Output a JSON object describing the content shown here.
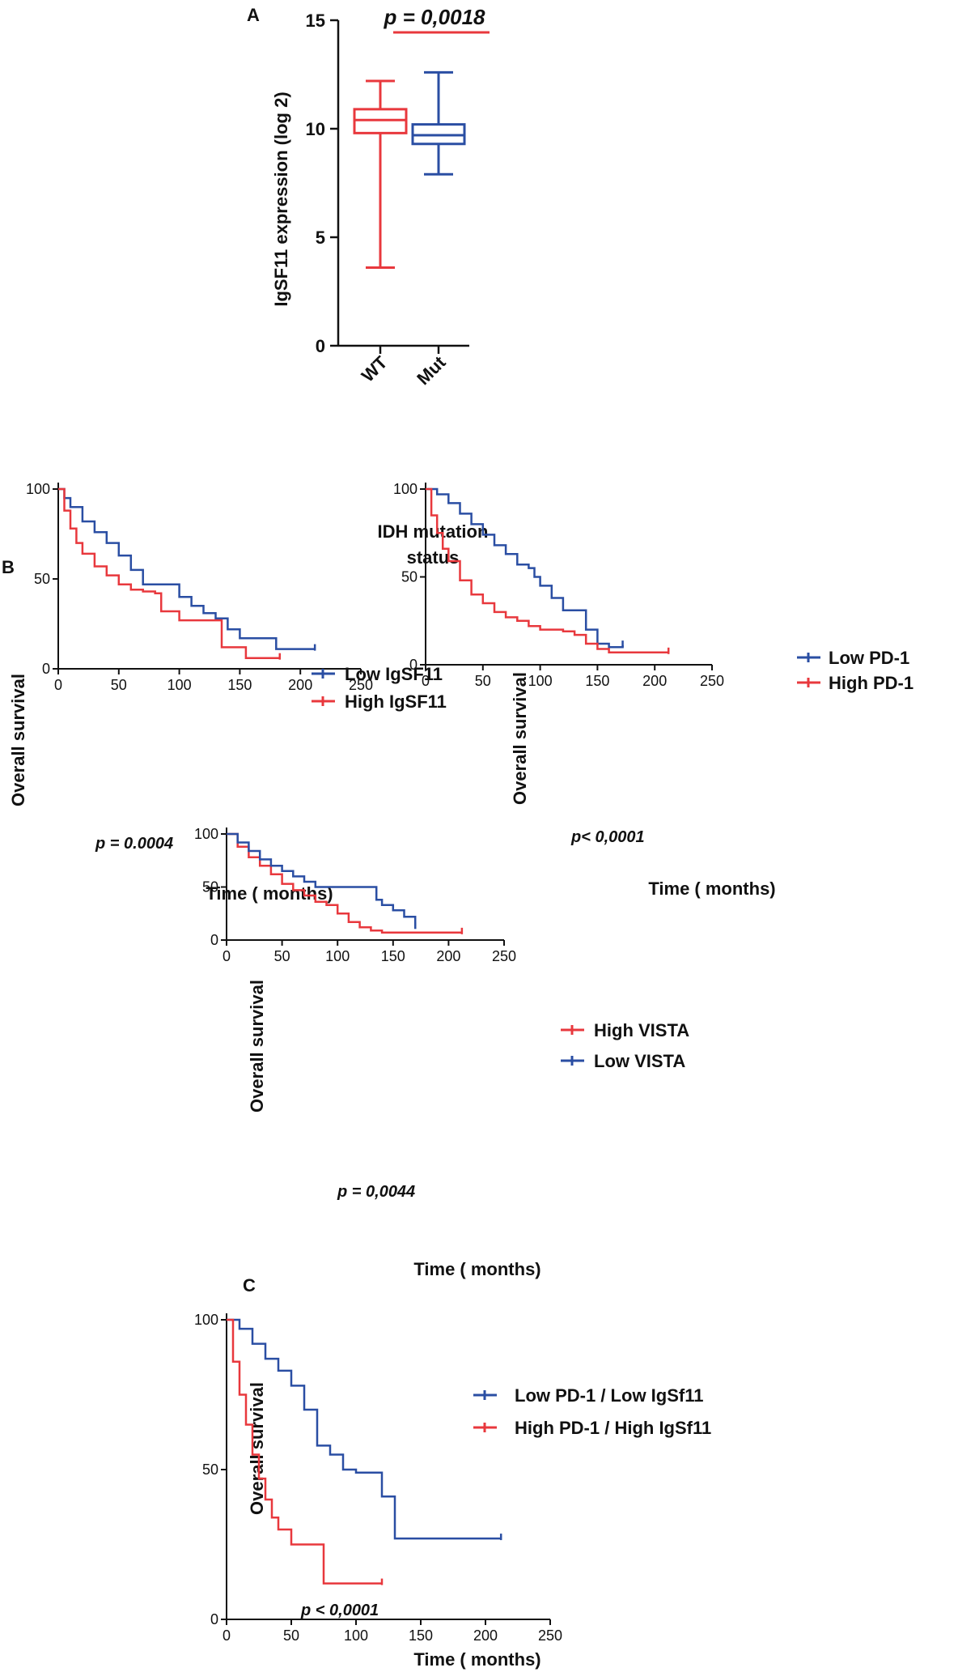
{
  "chart_data": [
    {
      "id": "A",
      "type": "box",
      "panel_label": "A",
      "title": "",
      "xlabel": "IDH mutation status",
      "xlabel_lines": [
        "IDH mutation",
        "status"
      ],
      "ylabel": "IgSF11 expression (log 2)",
      "ylim": [
        0,
        15
      ],
      "yticks": [
        "0",
        "5",
        "10",
        "15"
      ],
      "annotation": "p = 0,0018",
      "categories": [
        "WT",
        "Mut"
      ],
      "boxes": [
        {
          "name": "WT",
          "color": "#e8383d",
          "min": 3.6,
          "q1": 9.8,
          "median": 10.4,
          "q3": 10.9,
          "max": 12.2
        },
        {
          "name": "Mut",
          "color": "#2a4ea3",
          "min": 7.9,
          "q1": 9.3,
          "median": 9.7,
          "q3": 10.2,
          "max": 12.6
        }
      ]
    },
    {
      "id": "B1",
      "type": "line",
      "panel_label": "B",
      "xlabel": "Time ( months)",
      "ylabel": "Overall survival",
      "xlim": [
        0,
        250
      ],
      "ylim": [
        0,
        100
      ],
      "xticks": [
        "0",
        "50",
        "100",
        "150",
        "200",
        "250"
      ],
      "yticks": [
        "0",
        "50",
        "100"
      ],
      "annotation": "p = 0.0004",
      "series": [
        {
          "name": "Low IgSF11",
          "color": "#2a4ea3",
          "x": [
            0,
            5,
            10,
            20,
            30,
            40,
            50,
            60,
            70,
            80,
            90,
            100,
            110,
            120,
            130,
            140,
            150,
            160,
            170,
            180,
            190,
            200,
            212
          ],
          "y": [
            100,
            95,
            90,
            82,
            76,
            70,
            63,
            55,
            47,
            47,
            47,
            40,
            35,
            31,
            28,
            22,
            17,
            17,
            17,
            11,
            11,
            11,
            11
          ]
        },
        {
          "name": "High IgSF11",
          "color": "#e8383d",
          "x": [
            0,
            5,
            10,
            15,
            20,
            30,
            40,
            50,
            60,
            70,
            80,
            85,
            100,
            110,
            120,
            130,
            135,
            150,
            155,
            165,
            183
          ],
          "y": [
            100,
            88,
            78,
            70,
            64,
            57,
            52,
            47,
            44,
            43,
            42,
            32,
            27,
            27,
            27,
            27,
            12,
            12,
            6,
            6,
            6
          ]
        }
      ]
    },
    {
      "id": "B2",
      "type": "line",
      "xlabel": "Time ( months)",
      "ylabel": "Overall survival",
      "xlim": [
        0,
        250
      ],
      "ylim": [
        0,
        100
      ],
      "xticks": [
        "0",
        "50",
        "100",
        "150",
        "200",
        "250"
      ],
      "yticks": [
        "0",
        "50",
        "100"
      ],
      "annotation": "p< 0,0001",
      "series": [
        {
          "name": "Low PD-1",
          "color": "#2a4ea3",
          "x": [
            0,
            10,
            20,
            30,
            40,
            50,
            60,
            70,
            80,
            85,
            90,
            95,
            100,
            110,
            120,
            130,
            140,
            150,
            160,
            172
          ],
          "y": [
            100,
            97,
            92,
            86,
            80,
            74,
            68,
            63,
            57,
            57,
            55,
            50,
            45,
            38,
            31,
            31,
            20,
            12,
            10,
            11
          ]
        },
        {
          "name": "High PD-1",
          "color": "#e8383d",
          "x": [
            0,
            5,
            10,
            15,
            20,
            30,
            40,
            50,
            60,
            70,
            80,
            90,
            100,
            120,
            130,
            140,
            150,
            160,
            175,
            212
          ],
          "y": [
            100,
            85,
            75,
            66,
            59,
            48,
            40,
            35,
            30,
            27,
            25,
            22,
            20,
            19,
            17,
            12,
            9,
            7,
            7,
            7
          ]
        }
      ]
    },
    {
      "id": "B3",
      "type": "line",
      "xlabel": "Time ( months)",
      "ylabel": "Overall survival",
      "xlim": [
        0,
        250
      ],
      "ylim": [
        0,
        100
      ],
      "xticks": [
        "0",
        "50",
        "100",
        "150",
        "200",
        "250"
      ],
      "yticks": [
        "0",
        "50",
        "100"
      ],
      "annotation": "p = 0,0044",
      "series": [
        {
          "name": "High VISTA",
          "color": "#e8383d",
          "x": [
            0,
            10,
            20,
            30,
            40,
            50,
            60,
            70,
            80,
            90,
            100,
            110,
            120,
            130,
            140,
            150,
            160,
            180,
            212
          ],
          "y": [
            100,
            88,
            78,
            70,
            62,
            53,
            47,
            42,
            36,
            33,
            25,
            17,
            12,
            9,
            7,
            7,
            7,
            7,
            7
          ]
        },
        {
          "name": "Low VISTA",
          "color": "#2a4ea3",
          "x": [
            0,
            10,
            20,
            30,
            40,
            50,
            60,
            70,
            80,
            90,
            100,
            110,
            120,
            130,
            135,
            140,
            150,
            160,
            170
          ],
          "y": [
            100,
            92,
            84,
            76,
            70,
            65,
            60,
            55,
            50,
            50,
            50,
            50,
            50,
            50,
            38,
            33,
            28,
            22,
            12
          ]
        }
      ]
    },
    {
      "id": "C",
      "type": "line",
      "panel_label": "C",
      "xlabel": "Time ( months)",
      "ylabel": "Overall survival",
      "xlim": [
        0,
        250
      ],
      "ylim": [
        0,
        100
      ],
      "xticks": [
        "0",
        "50",
        "100",
        "150",
        "200",
        "250"
      ],
      "yticks": [
        "0",
        "50",
        "100"
      ],
      "annotation": "p < 0,0001",
      "series": [
        {
          "name": "Low PD-1 / Low IgSf11",
          "color": "#2a4ea3",
          "x": [
            0,
            10,
            20,
            30,
            40,
            50,
            60,
            70,
            80,
            90,
            100,
            110,
            120,
            130,
            140,
            160,
            180,
            212
          ],
          "y": [
            100,
            97,
            92,
            87,
            83,
            78,
            70,
            58,
            55,
            50,
            49,
            49,
            41,
            27,
            27,
            27,
            27,
            27
          ]
        },
        {
          "name": "High PD-1 / High IgSf11",
          "color": "#e8383d",
          "x": [
            0,
            5,
            10,
            15,
            20,
            25,
            30,
            35,
            40,
            50,
            60,
            70,
            75,
            80,
            100,
            120
          ],
          "y": [
            100,
            86,
            75,
            65,
            55,
            47,
            40,
            34,
            30,
            25,
            25,
            25,
            12,
            12,
            12,
            12
          ]
        }
      ]
    }
  ]
}
